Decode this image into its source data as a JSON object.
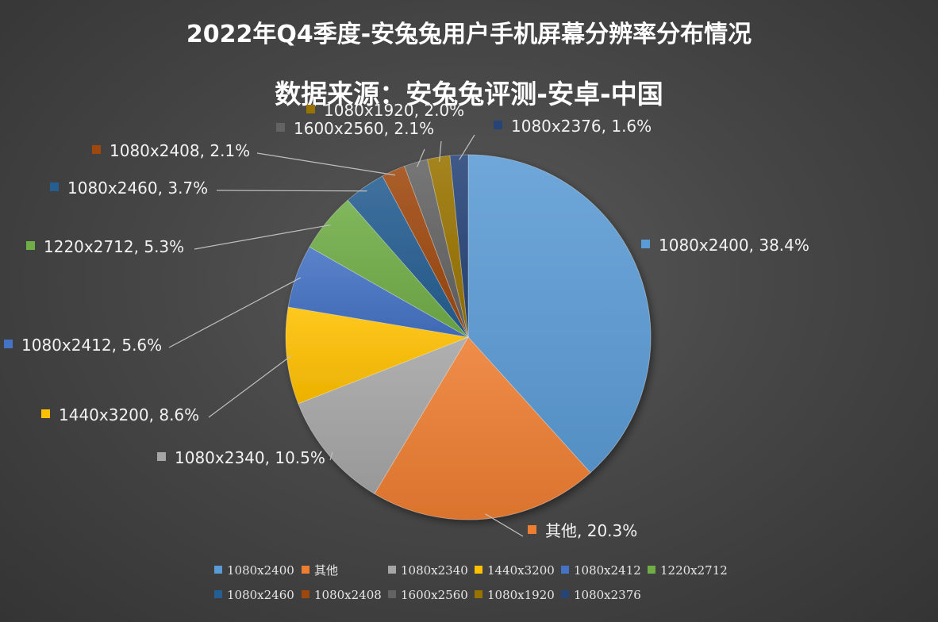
{
  "chart_data": {
    "type": "pie",
    "title": "2022年Q4季度-安兔兔用户手机屏幕分辨率分布情况",
    "subtitle": "数据来源：安兔兔评测-安卓-中国",
    "categories": [
      "1080x2400",
      "其他",
      "1080x2340",
      "1440x3200",
      "1080x2412",
      "1220x2712",
      "1080x2460",
      "1080x2408",
      "1600x2560",
      "1080x1920",
      "1080x2376"
    ],
    "values": [
      38.4,
      20.3,
      10.5,
      8.6,
      5.6,
      5.3,
      3.7,
      2.1,
      2.1,
      2.0,
      1.6
    ],
    "labels": [
      "1080x2400, 38.4%",
      "其他, 20.3%",
      "1080x2340, 10.5%",
      "1440x3200, 8.6%",
      "1080x2412, 5.6%",
      "1220x2712, 5.3%",
      "1080x2460, 3.7%",
      "1080x2408, 2.1%",
      "1600x2560, 2.1%",
      "1080x1920, 2.0%",
      "1080x2376, 1.6%"
    ],
    "colors": [
      "#5b9bd5",
      "#ed7d31",
      "#a5a5a5",
      "#ffc000",
      "#4472c4",
      "#70ad47",
      "#255e91",
      "#9e480e",
      "#636363",
      "#997300",
      "#264478"
    ],
    "legend_position": "bottom",
    "start_angle": "12 o'clock, clockwise"
  }
}
